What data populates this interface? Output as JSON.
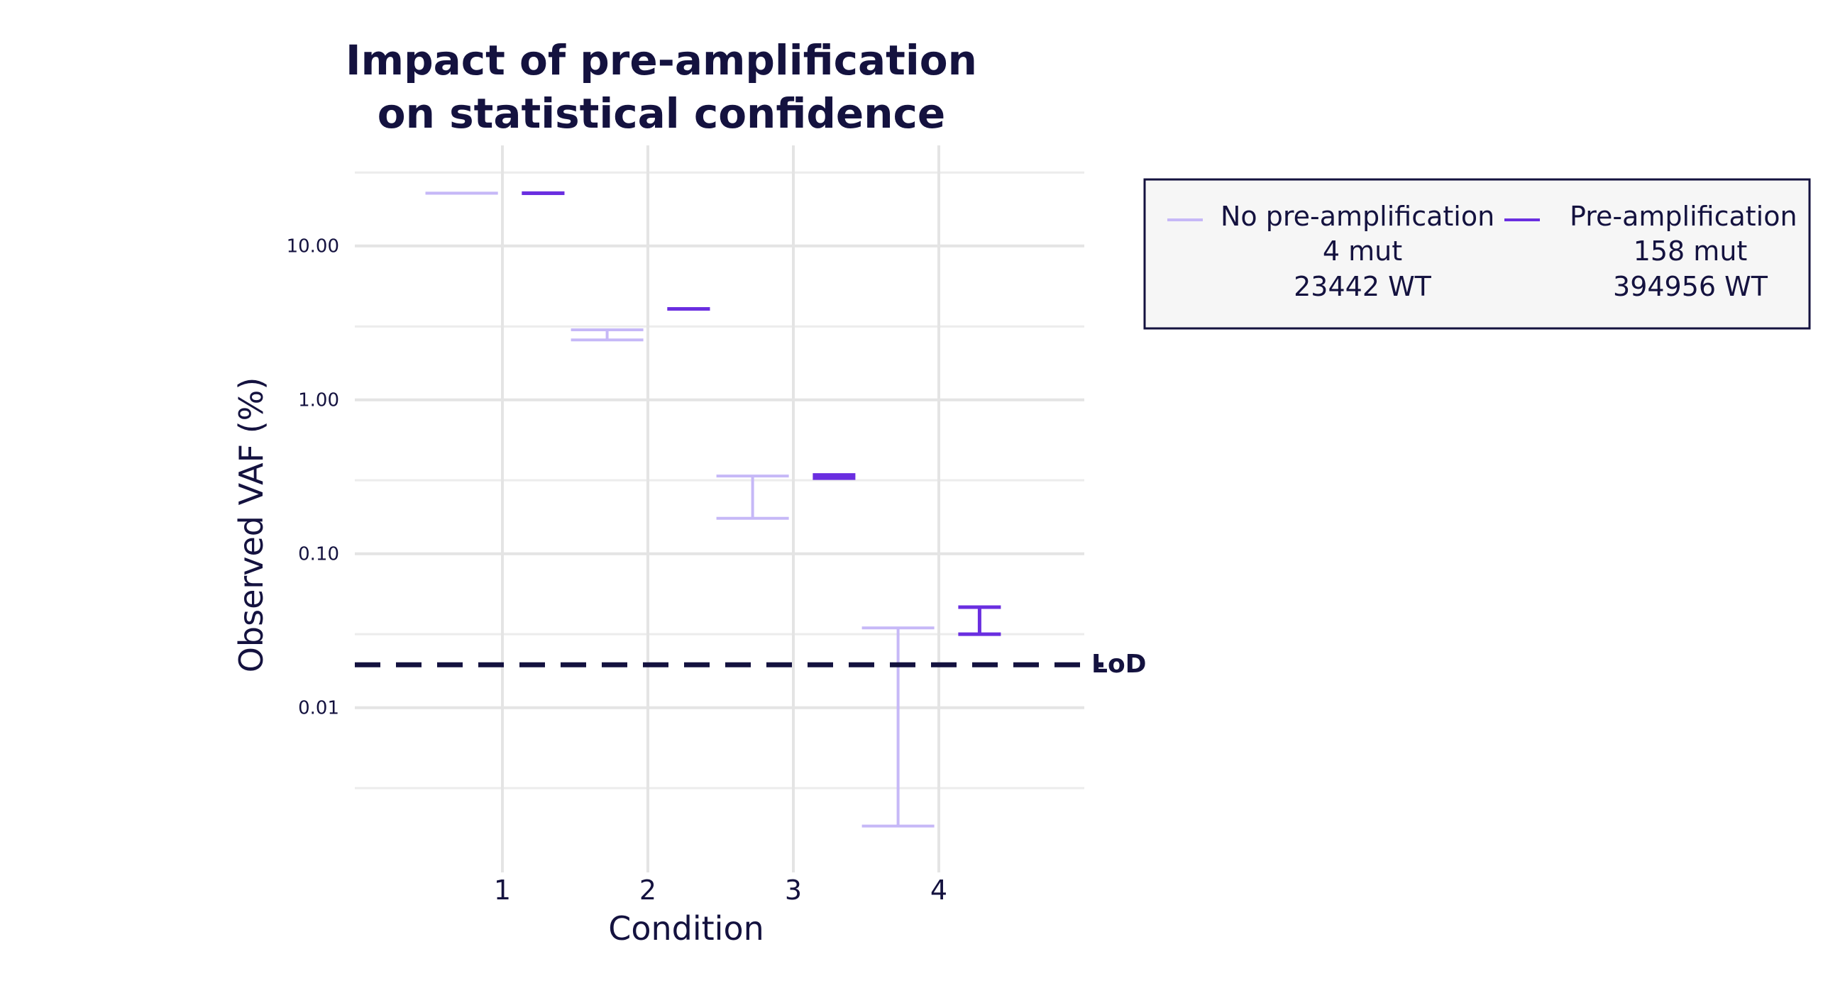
{
  "chart_data": {
    "type": "errorbar",
    "title": [
      "Impact of pre-amplification",
      "on statistical confidence"
    ],
    "xlabel": "Condition",
    "ylabel": "Observed VAF (%)",
    "yscale": "log",
    "ylim": [
      0.00085,
      45
    ],
    "y_major_ticks": [
      {
        "value": 10,
        "label": "10.00"
      },
      {
        "value": 1,
        "label": "1.00"
      },
      {
        "value": 0.1,
        "label": "0.10"
      },
      {
        "value": 0.01,
        "label": "0.01"
      }
    ],
    "y_minor_ticks": [
      30,
      3,
      0.3,
      0.03,
      0.003
    ],
    "x_ticks": [
      {
        "value": 1,
        "label": "1"
      },
      {
        "value": 2,
        "label": "2"
      },
      {
        "value": 3,
        "label": "3"
      },
      {
        "value": 4,
        "label": "4"
      }
    ],
    "xlim": [
      0,
      5
    ],
    "grid": true,
    "reference_line": {
      "value": 0.019,
      "label": "LoD",
      "style": "dashed",
      "color": "#14123f"
    },
    "series": [
      {
        "name": "No pre-amplification",
        "color": "#c6b8f7",
        "bars": [
          {
            "x": 0.72,
            "low": 22.0,
            "high": 22.0
          },
          {
            "x": 1.72,
            "low": 2.45,
            "high": 2.85
          },
          {
            "x": 2.72,
            "low": 0.17,
            "high": 0.32
          },
          {
            "x": 3.72,
            "low": 0.0017,
            "high": 0.033
          }
        ]
      },
      {
        "name": "Pre-amplification",
        "color": "#6a2ee0",
        "bars": [
          {
            "x": 1.28,
            "low": 22.0,
            "high": 22.0
          },
          {
            "x": 2.28,
            "low": 3.9,
            "high": 3.9
          },
          {
            "x": 3.28,
            "low": 0.31,
            "high": 0.325
          },
          {
            "x": 4.28,
            "low": 0.03,
            "high": 0.045
          }
        ]
      }
    ],
    "legend": {
      "placement": "right",
      "entries": [
        {
          "name": "No pre-amplification",
          "lines": [
            "4 mut",
            "23442 WT"
          ],
          "color": "#c6b8f7"
        },
        {
          "name": "Pre-amplification",
          "lines": [
            "158 mut",
            "394956 WT"
          ],
          "color": "#6a2ee0"
        }
      ]
    }
  }
}
